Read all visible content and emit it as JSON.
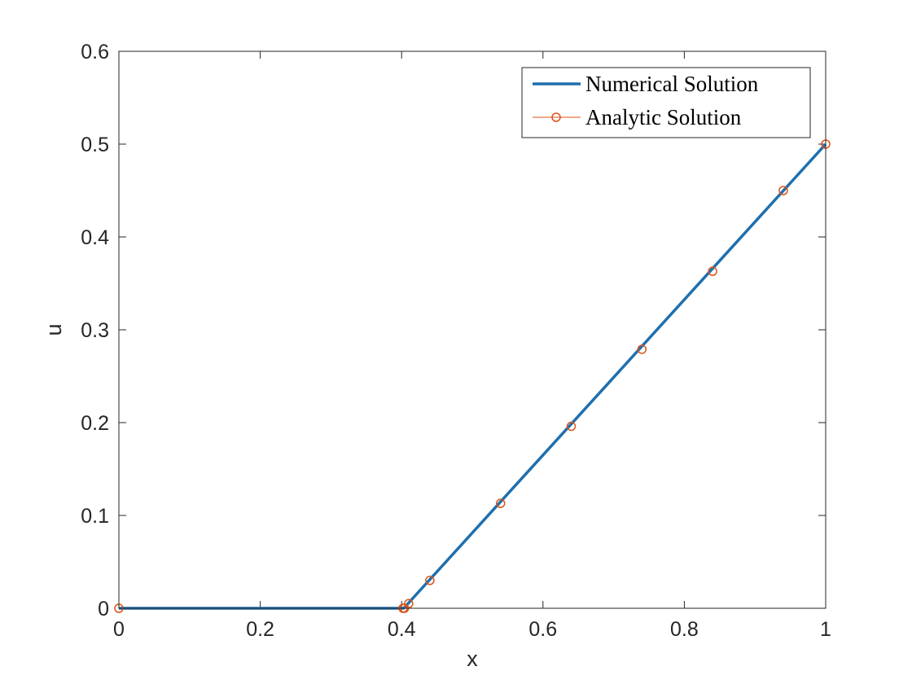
{
  "chart_data": {
    "type": "line",
    "xlabel": "x",
    "ylabel": "u",
    "xlim": [
      0,
      1
    ],
    "ylim": [
      0,
      0.6
    ],
    "xticks": [
      0,
      0.2,
      0.4,
      0.6,
      0.8,
      1
    ],
    "yticks": [
      0,
      0.1,
      0.2,
      0.3,
      0.4,
      0.5,
      0.6
    ],
    "xtick_labels": [
      "0",
      "0.2",
      "0.4",
      "0.6",
      "0.8",
      "1"
    ],
    "ytick_labels": [
      "0",
      "0.1",
      "0.2",
      "0.3",
      "0.4",
      "0.5",
      "0.6"
    ],
    "grid": false,
    "legend_position": "top-right",
    "series": [
      {
        "name": "Numerical Solution",
        "style": "line",
        "color": "#1f6fad",
        "x": [
          0,
          0.403,
          1
        ],
        "y": [
          0,
          0,
          0.5
        ]
      },
      {
        "name": "Analytic Solution",
        "style": "marker",
        "marker": "circle",
        "color": "#d95319",
        "x": [
          0,
          0.402,
          0.404,
          0.41,
          0.44,
          0.54,
          0.64,
          0.74,
          0.84,
          0.94,
          1.0
        ],
        "y": [
          0,
          0,
          0,
          0.005,
          0.03,
          0.113,
          0.196,
          0.279,
          0.363,
          0.45,
          0.5
        ]
      }
    ]
  }
}
